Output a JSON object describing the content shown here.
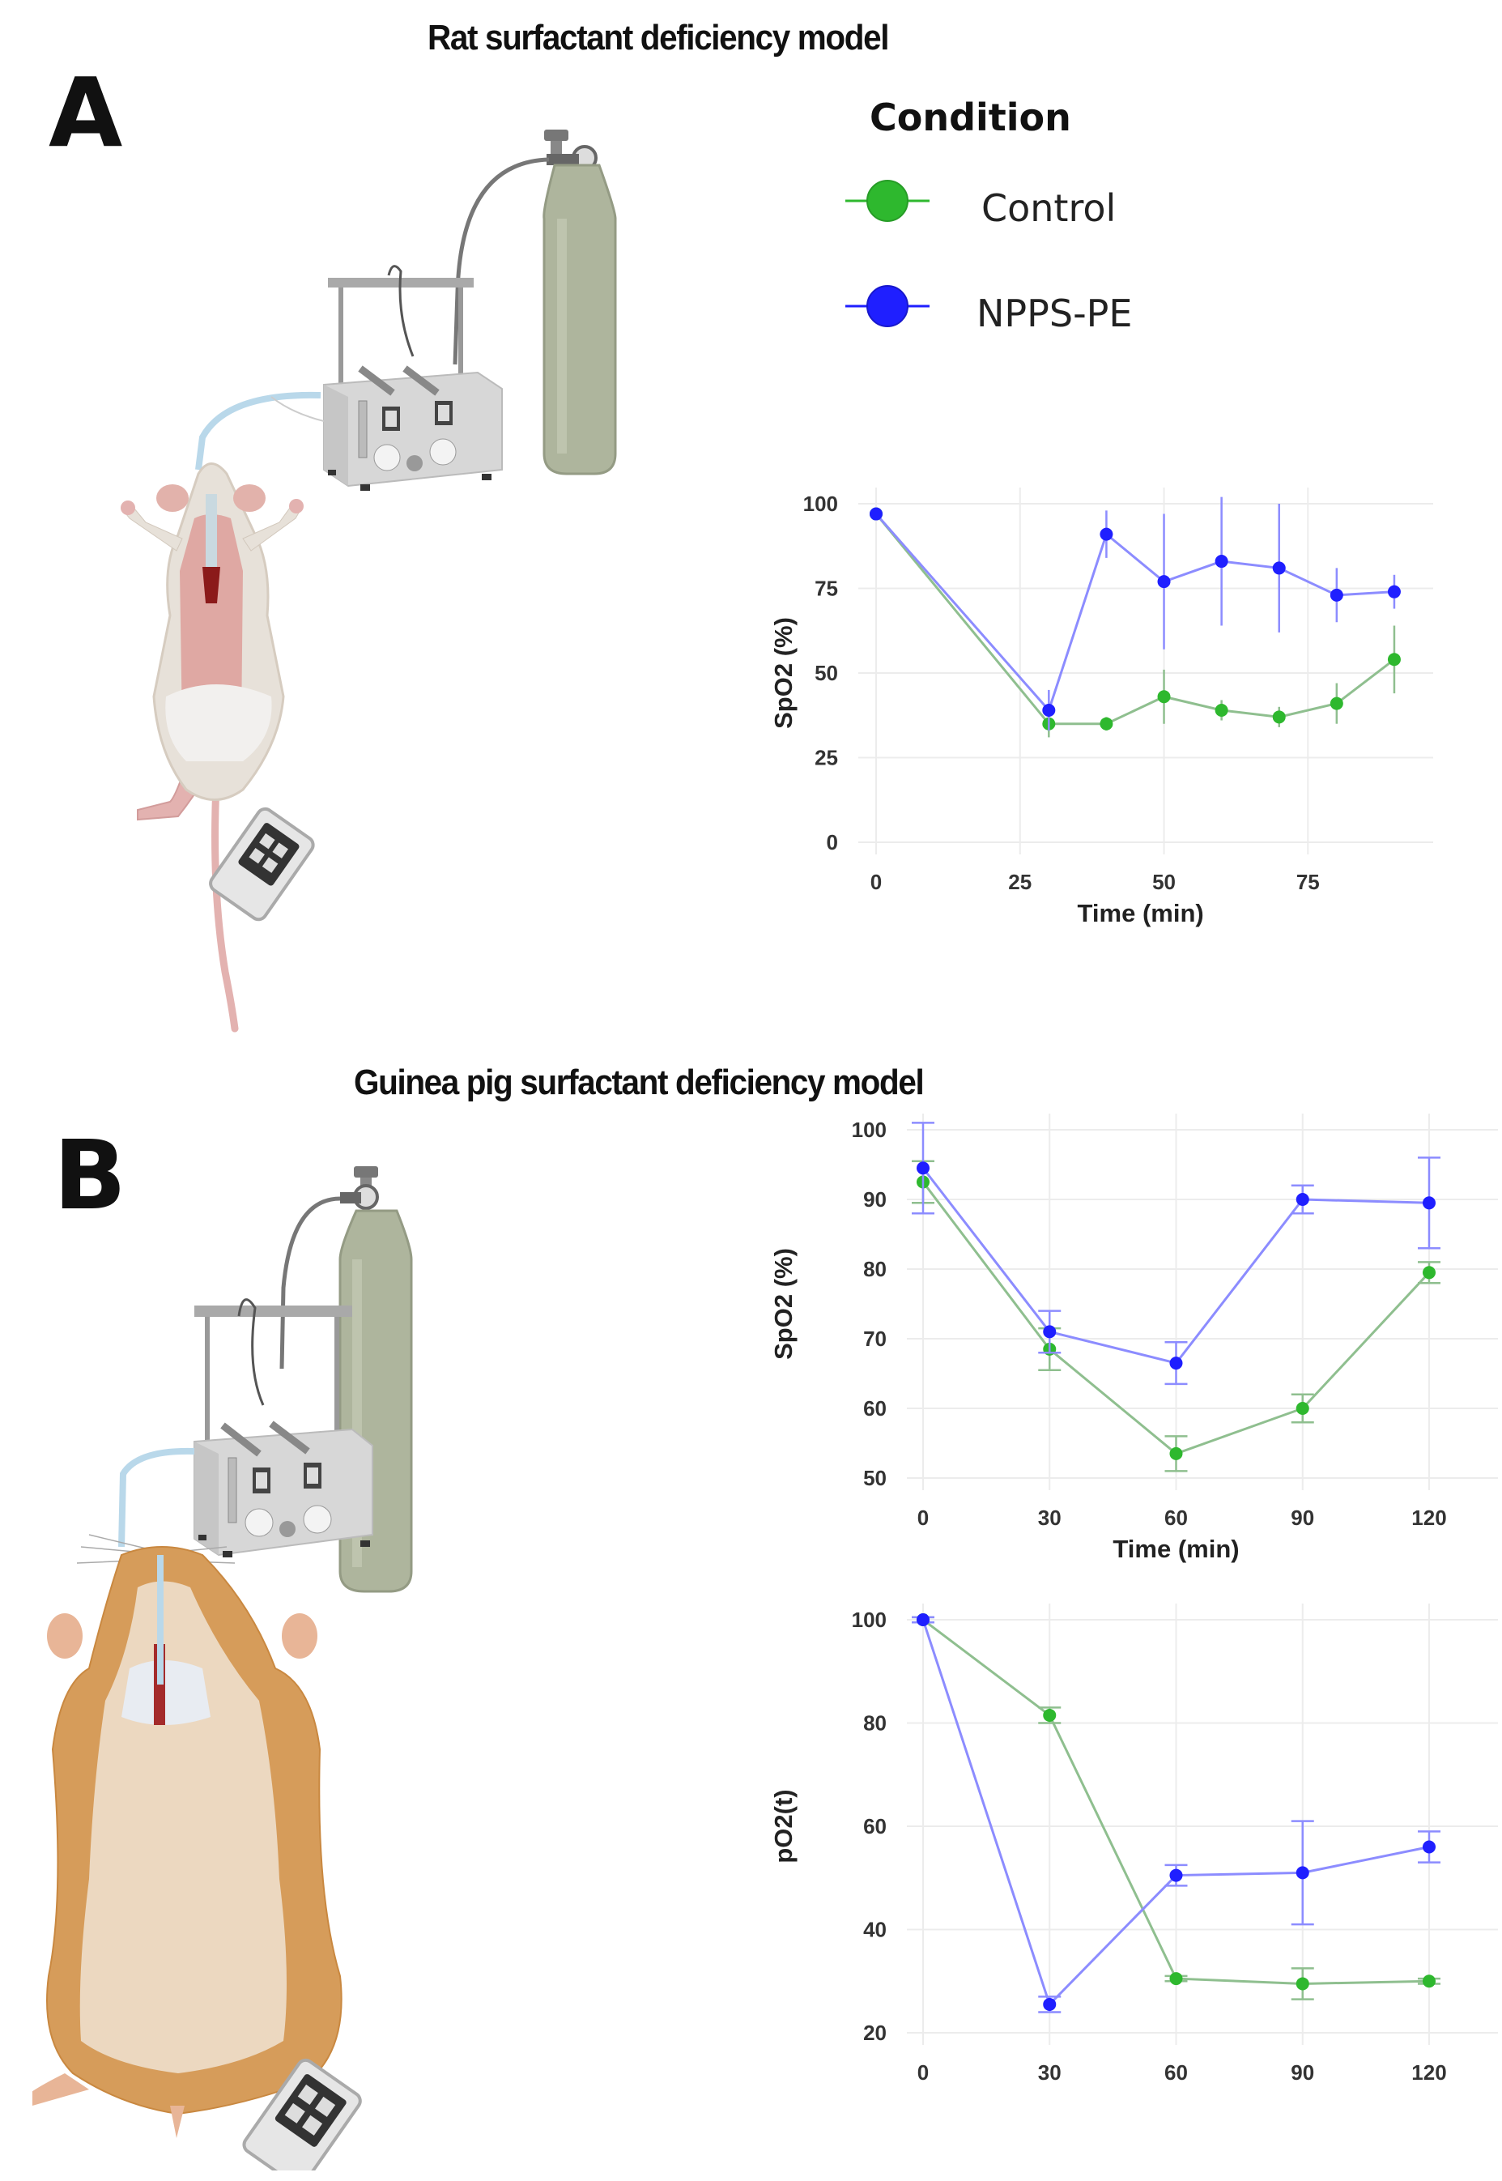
{
  "panels": {
    "a": {
      "letter": "A",
      "title": "Rat surfactant deficiency model",
      "illustration": "Rat intubated and connected to ventilator with gas cylinder; pulse oximeter on hind paw"
    },
    "b": {
      "letter": "B",
      "title": "Guinea pig surfactant deficiency model",
      "illustration": "Guinea pig intubated and connected to ventilator with gas cylinder; arterial line and pulse oximeter"
    }
  },
  "legend": {
    "title": "Condition",
    "items": [
      {
        "label": "Control",
        "color": "#2eb82e"
      },
      {
        "label": "NPPS-PE",
        "color": "#1f1fff"
      }
    ]
  },
  "colors": {
    "control": "#2eb82e",
    "npps_pe": "#1f1fff",
    "control_line": "#8fbf8f",
    "npps_line": "#8c8cff",
    "grid": "#ececec"
  },
  "chart_data": [
    {
      "id": "rat_spo2",
      "panel": "A",
      "type": "line",
      "title": "",
      "xlabel": "Time (min)",
      "ylabel": "SpO2 (%)",
      "xlim": [
        0,
        95
      ],
      "ylim": [
        0,
        100
      ],
      "xticks": [
        0,
        25,
        50,
        75
      ],
      "yticks": [
        0,
        25,
        50,
        75,
        100
      ],
      "grid": true,
      "legend_position": "top (shared legend)",
      "x": [
        0,
        30,
        40,
        50,
        60,
        70,
        80,
        90
      ],
      "series": [
        {
          "name": "Control",
          "color": "#2eb82e",
          "values": [
            97,
            35,
            35,
            43,
            39,
            37,
            41,
            54
          ],
          "error": [
            1,
            4,
            2,
            8,
            3,
            3,
            6,
            10
          ]
        },
        {
          "name": "NPPS-PE",
          "color": "#1f1fff",
          "values": [
            97,
            39,
            91,
            77,
            83,
            81,
            73,
            74
          ],
          "error": [
            1,
            6,
            7,
            20,
            19,
            19,
            8,
            5
          ]
        }
      ]
    },
    {
      "id": "guinea_pig_spo2",
      "panel": "B",
      "type": "line",
      "title": "",
      "xlabel": "Time (min)",
      "ylabel": "SpO2 (%)",
      "xlim": [
        0,
        120
      ],
      "ylim": [
        50,
        100
      ],
      "xticks": [
        0,
        30,
        60,
        90,
        120
      ],
      "yticks": [
        50,
        60,
        70,
        80,
        90,
        100
      ],
      "grid": true,
      "x": [
        0,
        30,
        60,
        90,
        120
      ],
      "series": [
        {
          "name": "Control",
          "color": "#2eb82e",
          "values": [
            92.5,
            68.5,
            53.5,
            60,
            79.5
          ],
          "error": [
            3,
            3,
            2.5,
            2,
            1.5
          ]
        },
        {
          "name": "NPPS-PE",
          "color": "#1f1fff",
          "values": [
            94.5,
            71,
            66.5,
            90,
            89.5
          ],
          "error": [
            6.5,
            3,
            3,
            2,
            6.5
          ]
        }
      ]
    },
    {
      "id": "guinea_pig_po2",
      "panel": "B",
      "type": "line",
      "title": "",
      "xlabel": "Time (min)",
      "ylabel": "pO2(t)",
      "xlim": [
        0,
        120
      ],
      "ylim": [
        20,
        100
      ],
      "xticks": [
        0,
        30,
        60,
        90,
        120
      ],
      "yticks": [
        20,
        40,
        60,
        80,
        100
      ],
      "grid": true,
      "x": [
        0,
        30,
        60,
        90,
        120
      ],
      "series": [
        {
          "name": "Control",
          "color": "#2eb82e",
          "values": [
            100,
            81.5,
            30.5,
            29.5,
            30
          ],
          "error": [
            0.5,
            1.5,
            0.5,
            3,
            0.5
          ]
        },
        {
          "name": "NPPS-PE",
          "color": "#1f1fff",
          "values": [
            100,
            25.5,
            50.5,
            51,
            56
          ],
          "error": [
            0.5,
            1.5,
            2,
            10,
            3
          ]
        }
      ]
    }
  ]
}
